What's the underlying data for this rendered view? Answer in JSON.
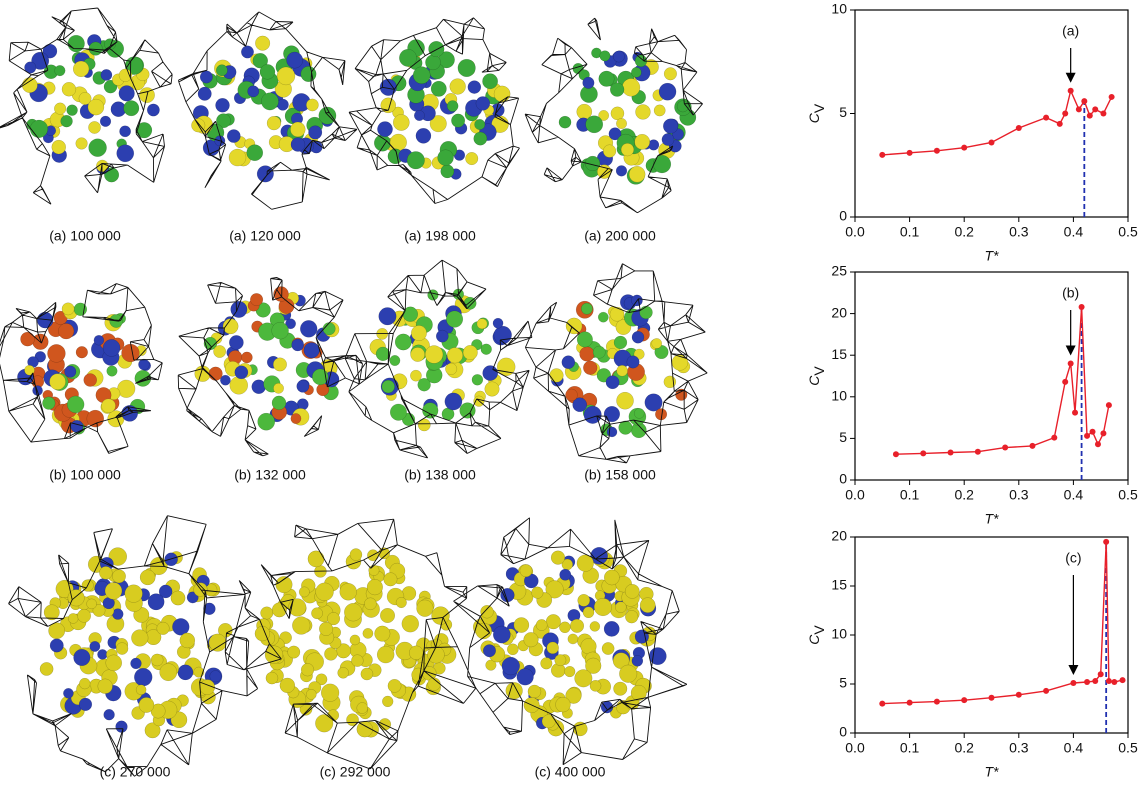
{
  "panels": [
    {
      "label": "(a) 100 000"
    },
    {
      "label": "(a) 120 000"
    },
    {
      "label": "(a) 198 000"
    },
    {
      "label": "(a) 200 000"
    },
    {
      "label": "(b) 100 000"
    },
    {
      "label": "(b) 132 000"
    },
    {
      "label": "(b) 138 000"
    },
    {
      "label": "(b) 158 000"
    },
    {
      "label": "(c) 270 000"
    },
    {
      "label": "(c) 292 000"
    },
    {
      "label": "(c) 400 000"
    }
  ],
  "chart_data": [
    {
      "type": "line",
      "xlabel": "T*",
      "ylabel": "C",
      "ylabel_subscript": "V",
      "color": "#e8202a",
      "x": [
        0.05,
        0.1,
        0.15,
        0.2,
        0.25,
        0.3,
        0.35,
        0.375,
        0.385,
        0.395,
        0.41,
        0.42,
        0.43,
        0.44,
        0.455,
        0.47
      ],
      "values": [
        3.0,
        3.1,
        3.2,
        3.35,
        3.6,
        4.3,
        4.8,
        4.5,
        5.0,
        6.1,
        5.2,
        5.6,
        4.9,
        5.2,
        5.0,
        5.8
      ],
      "xlim": [
        0,
        0.5
      ],
      "ylim": [
        0,
        10
      ],
      "xticks": [
        {
          "value": 0,
          "label": "0.0"
        },
        0.1,
        0.2,
        0.3,
        0.4,
        0.5
      ],
      "yticks": [
        0,
        5,
        10
      ],
      "annotation": {
        "text": "(a)",
        "x": 0.395
      },
      "marker_x": 0.42,
      "marker_color": "#2030b0"
    },
    {
      "type": "line",
      "xlabel": "T*",
      "ylabel": "C",
      "ylabel_subscript": "V",
      "color": "#e8202a",
      "x": [
        0.075,
        0.125,
        0.175,
        0.225,
        0.275,
        0.325,
        0.365,
        0.385,
        0.395,
        0.403,
        0.415,
        0.425,
        0.435,
        0.445,
        0.455,
        0.465
      ],
      "values": [
        3.1,
        3.2,
        3.3,
        3.4,
        3.9,
        4.1,
        5.1,
        11.8,
        14.0,
        8.1,
        20.8,
        5.3,
        5.8,
        4.3,
        5.6,
        9.0
      ],
      "xlim": [
        0,
        0.5
      ],
      "ylim": [
        0,
        25
      ],
      "xticks": [
        {
          "value": 0,
          "label": "0.0"
        },
        0.1,
        0.2,
        0.3,
        0.4,
        0.5
      ],
      "yticks": [
        0,
        5,
        10,
        15,
        20,
        25
      ],
      "annotation": {
        "text": "(b)",
        "x": 0.395
      },
      "marker_x": 0.415,
      "marker_color": "#2030b0"
    },
    {
      "type": "line",
      "xlabel": "T*",
      "ylabel": "C",
      "ylabel_subscript": "V",
      "color": "#e8202a",
      "x": [
        0.05,
        0.1,
        0.15,
        0.2,
        0.25,
        0.3,
        0.35,
        0.4,
        0.425,
        0.44,
        0.45,
        0.46,
        0.465,
        0.475,
        0.49
      ],
      "values": [
        3.0,
        3.1,
        3.2,
        3.35,
        3.6,
        3.9,
        4.3,
        5.1,
        5.2,
        5.3,
        6.0,
        19.5,
        5.3,
        5.2,
        5.4
      ],
      "xlim": [
        0,
        0.5
      ],
      "ylim": [
        0,
        20
      ],
      "xticks": [
        {
          "value": 0,
          "label": "0.0"
        },
        0.1,
        0.2,
        0.3,
        0.4,
        0.5
      ],
      "yticks": [
        0,
        5,
        10,
        15,
        20
      ],
      "annotation": {
        "text": "(c)",
        "x": 0.4
      },
      "marker_x": 0.46,
      "marker_color": "#2030b0"
    }
  ]
}
